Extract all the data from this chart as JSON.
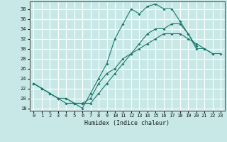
{
  "xlabel": "Humidex (Indice chaleur)",
  "ylabel": "",
  "bg_color": "#c8e8e8",
  "grid_color": "#ffffff",
  "line_color": "#1a7a6a",
  "xlim": [
    -0.5,
    23.5
  ],
  "ylim": [
    17.5,
    39.5
  ],
  "xticks": [
    0,
    1,
    2,
    3,
    4,
    5,
    6,
    7,
    8,
    9,
    10,
    11,
    12,
    13,
    14,
    15,
    16,
    17,
    18,
    19,
    20,
    21,
    22,
    23
  ],
  "yticks": [
    18,
    20,
    22,
    24,
    26,
    28,
    30,
    32,
    34,
    36,
    38
  ],
  "line1_y": [
    23,
    22,
    21,
    20,
    19,
    19,
    18,
    21,
    24,
    27,
    32,
    35,
    38,
    37,
    38.5,
    39,
    38,
    38,
    35.5,
    33,
    30.5,
    null,
    null,
    null
  ],
  "line2_y": [
    23,
    22,
    21,
    20,
    20,
    19,
    19,
    19,
    21,
    23,
    25,
    27,
    29,
    31,
    33,
    34,
    34,
    35,
    35,
    33,
    30,
    30,
    29,
    null
  ],
  "line3_y": [
    23,
    22,
    21,
    20,
    20,
    19,
    19,
    20,
    23,
    25,
    26,
    28,
    29,
    30,
    31,
    32,
    33,
    33,
    33,
    32,
    31,
    30,
    29,
    29
  ]
}
